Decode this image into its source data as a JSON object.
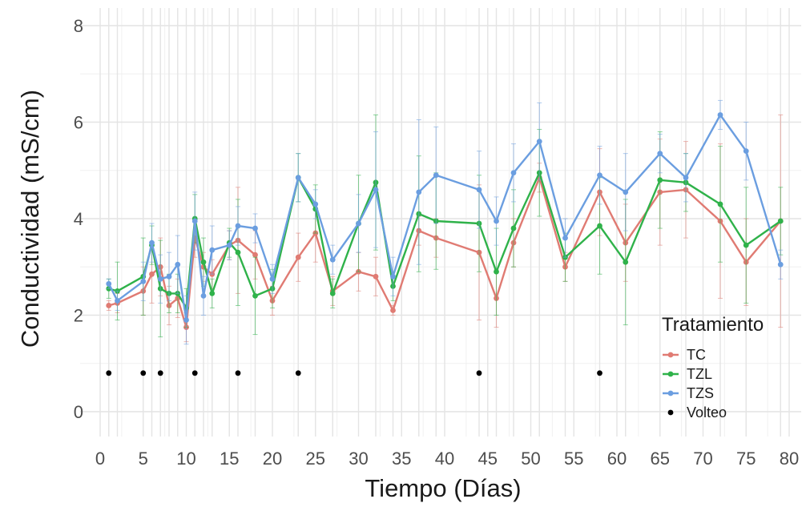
{
  "chart_data": {
    "type": "line",
    "xlabel": "Tiempo (Días)",
    "ylabel": "Conductividad (mS/cm)",
    "xlim": [
      0,
      80
    ],
    "ylim": [
      0,
      8
    ],
    "x_ticks": [
      0,
      5,
      10,
      15,
      20,
      25,
      30,
      35,
      40,
      45,
      50,
      55,
      60,
      65,
      70,
      75,
      80
    ],
    "y_ticks": [
      0,
      2,
      4,
      6,
      8
    ],
    "x_days": [
      1,
      2,
      5,
      6,
      7,
      8,
      9,
      10,
      11,
      12,
      13,
      15,
      16,
      18,
      20,
      23,
      25,
      27,
      30,
      32,
      34,
      37,
      39,
      44,
      46,
      48,
      51,
      54,
      58,
      61,
      65,
      68,
      72,
      75,
      79
    ],
    "grid": true,
    "legend": {
      "title": "Tratamiento",
      "position": "bottom-right",
      "entries": [
        "TC",
        "TZL",
        "TZS",
        "Volteo"
      ]
    },
    "series": [
      {
        "name": "TC",
        "color": "#e07b73",
        "values": [
          2.2,
          2.25,
          2.5,
          2.85,
          3.0,
          2.2,
          2.35,
          1.75,
          3.6,
          3.0,
          2.85,
          3.45,
          3.55,
          3.25,
          2.3,
          3.2,
          3.7,
          2.5,
          2.9,
          2.8,
          2.1,
          3.75,
          3.6,
          3.3,
          2.35,
          3.5,
          4.85,
          3.0,
          4.55,
          3.5,
          4.55,
          4.6,
          3.95,
          3.1,
          3.95
        ],
        "errors": [
          0.1,
          0.2,
          0.5,
          0.6,
          0.6,
          0.4,
          0.4,
          0.3,
          0.4,
          0.3,
          0.3,
          0.3,
          1.1,
          0.5,
          0.3,
          0.5,
          0.6,
          0.3,
          0.4,
          0.4,
          0.1,
          0.3,
          0.4,
          1.4,
          0.6,
          0.5,
          0.3,
          0.3,
          0.9,
          0.8,
          1.1,
          1.0,
          1.6,
          0.9,
          2.2
        ]
      },
      {
        "name": "TZL",
        "color": "#2fb24a",
        "values": [
          2.55,
          2.5,
          2.8,
          3.45,
          2.55,
          2.45,
          2.45,
          2.15,
          4.0,
          3.1,
          2.45,
          3.5,
          3.3,
          2.4,
          2.55,
          4.85,
          4.2,
          2.45,
          3.9,
          4.75,
          2.6,
          4.1,
          3.95,
          3.9,
          2.9,
          3.8,
          4.95,
          3.2,
          3.85,
          3.1,
          4.8,
          4.75,
          4.3,
          3.45,
          3.95
        ],
        "errors": [
          0.2,
          0.6,
          0.8,
          0.4,
          1.0,
          0.4,
          0.4,
          0.4,
          0.5,
          0.5,
          0.3,
          0.3,
          1.1,
          0.8,
          0.4,
          0.5,
          0.5,
          0.3,
          1.0,
          1.4,
          0.3,
          1.2,
          1.0,
          1.0,
          0.9,
          0.8,
          0.9,
          0.5,
          1.0,
          1.3,
          1.0,
          0.6,
          1.2,
          1.2,
          0.7
        ]
      },
      {
        "name": "TZS",
        "color": "#6b9ee0",
        "values": [
          2.65,
          2.3,
          2.7,
          3.5,
          2.75,
          2.8,
          3.05,
          1.9,
          3.95,
          2.4,
          3.35,
          3.45,
          3.85,
          3.8,
          2.75,
          4.85,
          4.3,
          3.15,
          3.9,
          4.6,
          2.8,
          4.55,
          4.9,
          4.6,
          3.95,
          4.95,
          5.6,
          3.6,
          4.9,
          4.55,
          5.35,
          4.85,
          6.15,
          5.4,
          3.05
        ],
        "errors": [
          0.1,
          0.2,
          0.4,
          0.4,
          0.5,
          0.5,
          0.6,
          0.5,
          0.6,
          0.4,
          0.5,
          0.3,
          0.4,
          0.3,
          0.3,
          0.5,
          0.3,
          0.3,
          0.6,
          1.2,
          0.4,
          1.5,
          1.0,
          0.8,
          0.5,
          0.6,
          0.8,
          0.4,
          0.6,
          0.8,
          0.4,
          0.5,
          0.3,
          0.6,
          0.3
        ]
      }
    ],
    "volteo": {
      "name": "Volteo",
      "color": "#000000",
      "y": 0.8,
      "x": [
        1,
        5,
        7,
        11,
        16,
        23,
        44,
        58
      ]
    }
  }
}
